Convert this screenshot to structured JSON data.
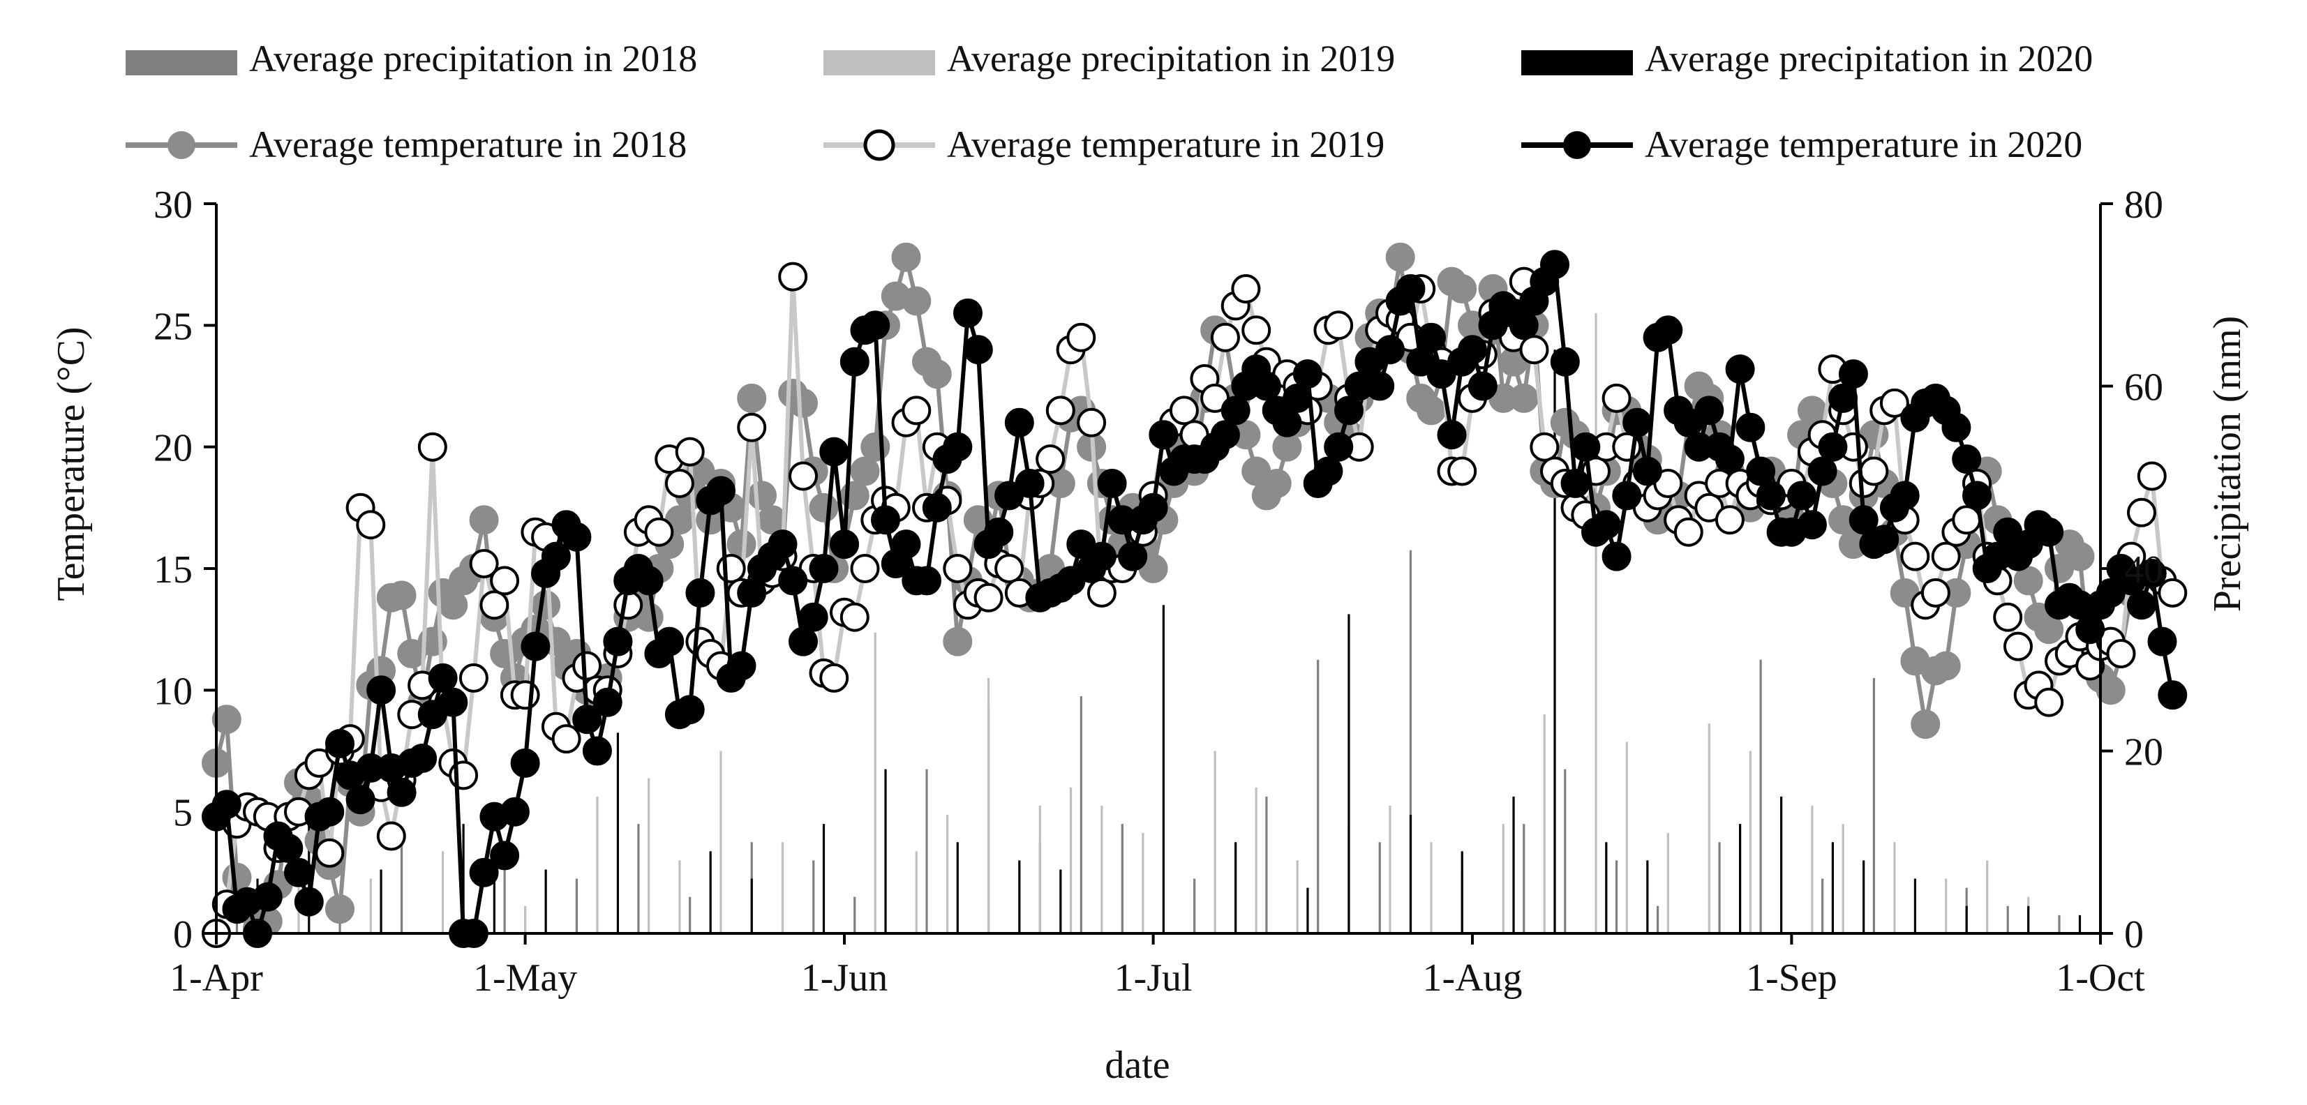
{
  "chart_data": {
    "type": "bar+line",
    "xlabel": "date",
    "ylabel_left": "Temperature (°C)",
    "ylabel_right": "Precipitation (mm)",
    "x_ticks": [
      "1-Apr",
      "1-May",
      "1-Jun",
      "1-Jul",
      "1-Aug",
      "1-Sep",
      "1-Oct"
    ],
    "x_tick_days": [
      0,
      30,
      61,
      91,
      122,
      153,
      183
    ],
    "xlim": [
      0,
      183
    ],
    "ylim_left": [
      0,
      30
    ],
    "yticks_left": [
      0,
      5,
      10,
      15,
      20,
      25,
      30
    ],
    "ylim_right": [
      0,
      80
    ],
    "yticks_right": [
      0,
      20,
      40,
      60,
      80
    ],
    "legend_position": "top",
    "colors": {
      "p2018": "#7f7f7f",
      "p2019": "#bfbfbf",
      "p2020": "#000000",
      "t2018": "#8c8c8c",
      "t2019": "#ffffff",
      "t2020": "#000000",
      "line2019": "#c8c8c8"
    },
    "precip_series": [
      {
        "key": "p2018",
        "name": "Average precipitation in 2018",
        "points": [
          [
            2,
            4
          ],
          [
            5,
            3
          ],
          [
            12,
            3.5
          ],
          [
            18,
            10
          ],
          [
            28,
            8
          ],
          [
            35,
            6
          ],
          [
            41,
            12
          ],
          [
            46,
            4
          ],
          [
            52,
            10
          ],
          [
            58,
            8
          ],
          [
            62,
            4
          ],
          [
            69,
            18
          ],
          [
            75,
            25
          ],
          [
            80,
            10
          ],
          [
            84,
            26
          ],
          [
            88,
            12
          ],
          [
            95,
            6
          ],
          [
            102,
            15
          ],
          [
            107,
            30
          ],
          [
            113,
            10
          ],
          [
            116,
            42
          ],
          [
            121,
            7
          ],
          [
            127,
            12
          ],
          [
            131,
            18
          ],
          [
            136,
            8
          ],
          [
            140,
            3
          ],
          [
            146,
            10
          ],
          [
            150,
            30
          ],
          [
            156,
            6
          ],
          [
            161,
            28
          ],
          [
            170,
            5
          ],
          [
            174,
            3
          ],
          [
            179,
            2
          ]
        ]
      },
      {
        "key": "p2019",
        "name": "Average precipitation in 2019",
        "points": [
          [
            3,
            2
          ],
          [
            8,
            5
          ],
          [
            15,
            6
          ],
          [
            22,
            9
          ],
          [
            30,
            3
          ],
          [
            37,
            15
          ],
          [
            42,
            17
          ],
          [
            45,
            8
          ],
          [
            49,
            20
          ],
          [
            55,
            10
          ],
          [
            64,
            33
          ],
          [
            68,
            9
          ],
          [
            71,
            13
          ],
          [
            75,
            28
          ],
          [
            80,
            14
          ],
          [
            83,
            16
          ],
          [
            86,
            14
          ],
          [
            90,
            11
          ],
          [
            97,
            20
          ],
          [
            101,
            16
          ],
          [
            105,
            8
          ],
          [
            110,
            12
          ],
          [
            114,
            14
          ],
          [
            118,
            10
          ],
          [
            125,
            12
          ],
          [
            129,
            24
          ],
          [
            134,
            68
          ],
          [
            137,
            21
          ],
          [
            141,
            11
          ],
          [
            145,
            23
          ],
          [
            149,
            20
          ],
          [
            155,
            14
          ],
          [
            158,
            12
          ],
          [
            163,
            10
          ],
          [
            168,
            6
          ],
          [
            172,
            8
          ],
          [
            176,
            4
          ]
        ]
      },
      {
        "key": "p2020",
        "name": "Average precipitation in 2020",
        "points": [
          [
            4,
            6
          ],
          [
            9,
            19
          ],
          [
            16,
            7
          ],
          [
            24,
            12
          ],
          [
            27,
            8
          ],
          [
            32,
            7
          ],
          [
            39,
            22
          ],
          [
            48,
            9
          ],
          [
            52,
            6
          ],
          [
            59,
            12
          ],
          [
            65,
            18
          ],
          [
            72,
            10
          ],
          [
            78,
            8
          ],
          [
            82,
            7
          ],
          [
            92,
            36
          ],
          [
            99,
            10
          ],
          [
            106,
            5
          ],
          [
            110,
            35
          ],
          [
            116,
            13
          ],
          [
            121,
            9
          ],
          [
            126,
            15
          ],
          [
            130,
            64
          ],
          [
            135,
            10
          ],
          [
            139,
            8
          ],
          [
            148,
            12
          ],
          [
            152,
            15
          ],
          [
            157,
            10
          ],
          [
            160,
            8
          ],
          [
            165,
            6
          ],
          [
            170,
            3
          ],
          [
            176,
            3
          ],
          [
            181,
            2
          ]
        ]
      }
    ],
    "temperature_series": [
      {
        "key": "t2018",
        "name": "Average temperature in 2018",
        "values": [
          7.0,
          8.8,
          2.3,
          1.0,
          0.2,
          0.5,
          2.0,
          4.8,
          6.2,
          5.5,
          3.8,
          2.8,
          1.0,
          6.2,
          5.0,
          10.2,
          10.8,
          13.8,
          13.9,
          11.5,
          9.5,
          12.0,
          14.0,
          13.5,
          14.5,
          15.0,
          17.0,
          13.0,
          11.5,
          10.5,
          12.0,
          12.5,
          13.5,
          12.0,
          11.0,
          11.5,
          10.0,
          9.5,
          10.5,
          12.0,
          13.0,
          14.0,
          13.0,
          15.0,
          16.0,
          17.0,
          18.0,
          19.0,
          17.0,
          18.5,
          17.5,
          16.0,
          22.0,
          18.0,
          17.0,
          15.5,
          22.2,
          21.8,
          19.0,
          17.5,
          15.0,
          16.0,
          18.0,
          19.0,
          20.0,
          25.0,
          26.2,
          27.8,
          26.0,
          23.5,
          23.0,
          18.0,
          12.0,
          14.5,
          17.0,
          16.0,
          18.0,
          15.0,
          14.5,
          13.8,
          14.0,
          15.0,
          18.5,
          21.2,
          21.5,
          20.0,
          18.5,
          17.0,
          16.0,
          17.5,
          16.0,
          15.0,
          17.0,
          18.5,
          20.0,
          19.0,
          22.0,
          24.8,
          24.5,
          22.0,
          20.5,
          19.0,
          18.0,
          18.5,
          20.0,
          21.0,
          23.0,
          22.5,
          22.0,
          21.0,
          20.5,
          22.0,
          24.5,
          25.5,
          25.0,
          27.8,
          24.0,
          22.0,
          21.5,
          23.0,
          26.8,
          26.5,
          25.0,
          24.5,
          26.5,
          22.0,
          23.5,
          22.0,
          25.0,
          19.0,
          18.5,
          21.0,
          20.5,
          20.0,
          17.5,
          19.0,
          21.5,
          21.5,
          20.0,
          19.5,
          17.0,
          17.5,
          18.0,
          21.0,
          22.5,
          22.0,
          20.5,
          19.0,
          18.5,
          17.5,
          18.5,
          19.0,
          18.5,
          17.0,
          20.5,
          21.5,
          20.0,
          18.5,
          17.0,
          16.0,
          18.0,
          20.5,
          18.5,
          16.5,
          14.0,
          11.2,
          8.6,
          10.8,
          11.0,
          14.0,
          16.0,
          18.5,
          19.0,
          17.0,
          16.5,
          15.5,
          14.5,
          13.0,
          12.5,
          15.0,
          16.0,
          15.5,
          11.0,
          10.5,
          10.0,
          11.5,
          14.0
        ],
        "note": "Dense daily temperature line (points omitted visually by density; values estimated)"
      },
      {
        "key": "t2019",
        "name": "Average temperature in 2019",
        "values": [
          0.0,
          1.2,
          4.5,
          5.2,
          5.0,
          4.8,
          3.5,
          4.8,
          5.0,
          6.5,
          7.0,
          3.3,
          7.5,
          8.0,
          17.5,
          16.8,
          6.0,
          4.0,
          6.3,
          9.0,
          10.2,
          20.0,
          9.5,
          7.0,
          6.5,
          10.5,
          15.2,
          13.5,
          14.5,
          9.8,
          9.8,
          16.5,
          16.3,
          8.5,
          8.0,
          10.5,
          11.0,
          10.0,
          10.0,
          11.5,
          13.5,
          16.5,
          17.0,
          16.5,
          19.5,
          18.5,
          19.8,
          12.0,
          11.5,
          11.0,
          15.0,
          14.0,
          20.8,
          14.5,
          14.8,
          15.5,
          27.0,
          18.8,
          15.0,
          10.7,
          10.5,
          13.2,
          13.0,
          15.0,
          17.0,
          17.8,
          17.5,
          21.0,
          21.5,
          17.5,
          20.0,
          17.8,
          15.0,
          13.5,
          14.0,
          13.8,
          15.2,
          15.0,
          14.0,
          18.0,
          18.5,
          19.5,
          21.5,
          24.0,
          24.5,
          21.0,
          14.0,
          15.0,
          15.0,
          15.5,
          16.5,
          18.0,
          20.5,
          21.0,
          21.5,
          20.5,
          22.8,
          22.0,
          24.5,
          25.8,
          26.5,
          24.8,
          23.5,
          22.5,
          23.0,
          22.5,
          21.5,
          22.5,
          24.8,
          25.0,
          22.0,
          20.0,
          23.5,
          24.8,
          25.5,
          25.2,
          24.5,
          26.5,
          24.0,
          23.5,
          19.0,
          19.0,
          22.0,
          23.8,
          25.5,
          25.5,
          24.5,
          26.8,
          24.0,
          20.0,
          19.0,
          18.5,
          17.5,
          17.2,
          19.0,
          20.0,
          22.0,
          20.0,
          18.5,
          17.5,
          18.0,
          18.5,
          17.0,
          16.5,
          18.0,
          17.5,
          18.5,
          17.0,
          18.5,
          18.0,
          18.5,
          17.8,
          18.0,
          18.5,
          18.0,
          19.8,
          20.5,
          23.2,
          21.5,
          20.0,
          18.5,
          19.0,
          21.5,
          21.8,
          17.0,
          15.5,
          13.5,
          14.0,
          15.5,
          16.5,
          17.0,
          18.5,
          15.5,
          14.5,
          13.0,
          11.8,
          9.8,
          10.2,
          9.5,
          11.2,
          11.5,
          12.2,
          11.0,
          11.8,
          12.0,
          11.5,
          15.5,
          17.3,
          18.8,
          14.5,
          14.0
        ]
      },
      {
        "key": "t2020",
        "name": "Average temperature in 2020",
        "values": [
          4.8,
          5.3,
          1.0,
          1.3,
          0.0,
          1.5,
          4.0,
          3.5,
          2.5,
          1.3,
          4.8,
          5.0,
          7.8,
          6.5,
          5.5,
          6.8,
          10.0,
          6.8,
          5.8,
          7.0,
          7.2,
          9.0,
          10.5,
          9.5,
          0.0,
          0.0,
          2.5,
          4.8,
          3.2,
          5.0,
          7.0,
          11.8,
          14.8,
          15.5,
          16.8,
          16.3,
          8.8,
          7.5,
          9.5,
          12.0,
          14.5,
          15.0,
          14.5,
          11.5,
          12.0,
          9.0,
          9.2,
          14.0,
          17.8,
          18.2,
          10.5,
          11.0,
          14.0,
          15.0,
          15.5,
          16.0,
          14.5,
          12.0,
          13.0,
          15.0,
          19.8,
          16.0,
          23.5,
          24.8,
          25.0,
          17.0,
          15.2,
          16.0,
          14.5,
          14.5,
          17.5,
          19.5,
          20.0,
          25.5,
          24.0,
          16.0,
          16.5,
          18.0,
          21.0,
          18.5,
          13.8,
          14.0,
          14.2,
          14.5,
          16.0,
          15.0,
          15.5,
          18.5,
          17.0,
          15.5,
          17.0,
          17.5,
          20.5,
          19.0,
          19.5,
          19.5,
          19.5,
          20.0,
          20.5,
          21.5,
          22.5,
          23.2,
          22.5,
          21.5,
          21.0,
          22.0,
          23.0,
          18.5,
          19.0,
          20.0,
          21.5,
          22.5,
          23.5,
          22.5,
          24.0,
          26.0,
          26.5,
          23.5,
          24.5,
          23.0,
          20.5,
          23.5,
          24.0,
          22.5,
          25.0,
          25.8,
          25.5,
          25.0,
          26.0,
          26.8,
          27.5,
          23.5,
          18.5,
          20.0,
          16.5,
          16.8,
          15.5,
          18.0,
          21.0,
          19.0,
          24.5,
          24.8,
          21.5,
          21.0,
          20.0,
          21.5,
          20.0,
          19.5,
          23.2,
          20.8,
          19.0,
          18.0,
          16.5,
          16.5,
          18.0,
          16.8,
          19.0,
          20.0,
          22.0,
          23.0,
          17.0,
          16.0,
          16.2,
          17.5,
          18.0,
          21.2,
          21.8,
          22.0,
          21.5,
          20.8,
          19.5,
          18.0,
          15.0,
          15.5,
          16.5,
          15.5,
          16.0,
          16.8,
          16.5,
          13.5,
          13.8,
          13.5,
          12.5,
          13.5,
          14.0,
          15.0,
          14.5,
          13.5,
          14.8,
          12.0,
          9.8
        ]
      }
    ]
  }
}
